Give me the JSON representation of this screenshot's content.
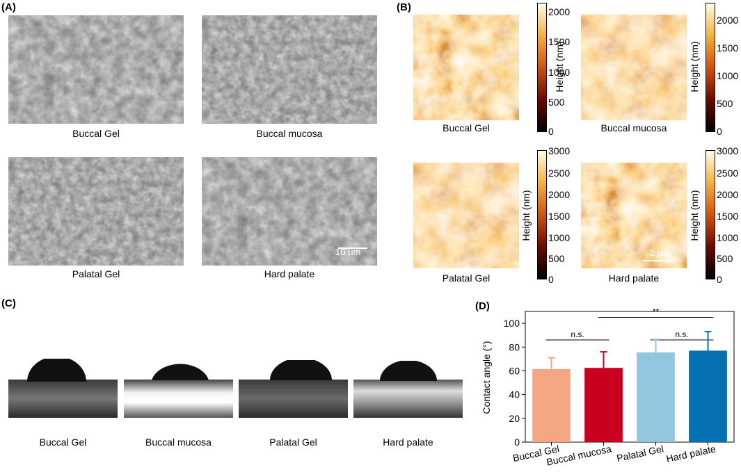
{
  "panels": {
    "a": {
      "label": "(A)",
      "images": [
        {
          "caption": "Buccal Gel"
        },
        {
          "caption": "Buccal mucosa"
        },
        {
          "caption": "Palatal Gel"
        },
        {
          "caption": "Hard palate"
        }
      ],
      "scale_bar": "10 μm"
    },
    "b": {
      "label": "(B)",
      "images": [
        {
          "caption": "Buccal Gel",
          "colorbar_ticks": [
            "2000",
            "1500",
            "1000",
            "500",
            "0"
          ]
        },
        {
          "caption": "Buccal mucosa",
          "colorbar_ticks": [
            "2000",
            "1500",
            "1000",
            "500",
            "0"
          ]
        },
        {
          "caption": "Palatal Gel",
          "colorbar_ticks": [
            "3000",
            "2500",
            "2000",
            "1500",
            "1000",
            "500",
            "0"
          ]
        },
        {
          "caption": "Hard palate",
          "colorbar_ticks": [
            "3000",
            "2500",
            "2000",
            "1500",
            "1000",
            "500",
            "0"
          ]
        }
      ],
      "colorbar_title": "Height (nm)",
      "scale_bar": "2 μm"
    },
    "c": {
      "label": "(C)",
      "images": [
        {
          "caption": "Buccal Gel"
        },
        {
          "caption": "Buccal mucosa"
        },
        {
          "caption": "Palatal Gel"
        },
        {
          "caption": "Hard palate"
        }
      ]
    },
    "d": {
      "label": "(D)"
    }
  },
  "colors": {
    "buccal_gel": "#f4a582",
    "buccal_mucosa": "#ca0020",
    "palatal_gel": "#92c5de",
    "hard_palate": "#0571b0"
  },
  "chart_data": {
    "type": "bar",
    "categories": [
      "Buccal Gel",
      "Buccal mucosa",
      "Palatal Gel",
      "Hard palate"
    ],
    "values": [
      61.5,
      62.5,
      75.5,
      77
    ],
    "errors": [
      9.5,
      13.5,
      11,
      16
    ],
    "ylabel": "Contact angle (°)",
    "xlabel": "",
    "ylim": [
      0,
      110
    ],
    "yticks": [
      0,
      20,
      40,
      60,
      80,
      100
    ],
    "grid": false,
    "significance": [
      {
        "from": 0,
        "to": 1,
        "label": "n.s."
      },
      {
        "from": 2,
        "to": 3,
        "label": "n.s."
      },
      {
        "from": 1,
        "to": 3,
        "label": "**"
      }
    ]
  }
}
